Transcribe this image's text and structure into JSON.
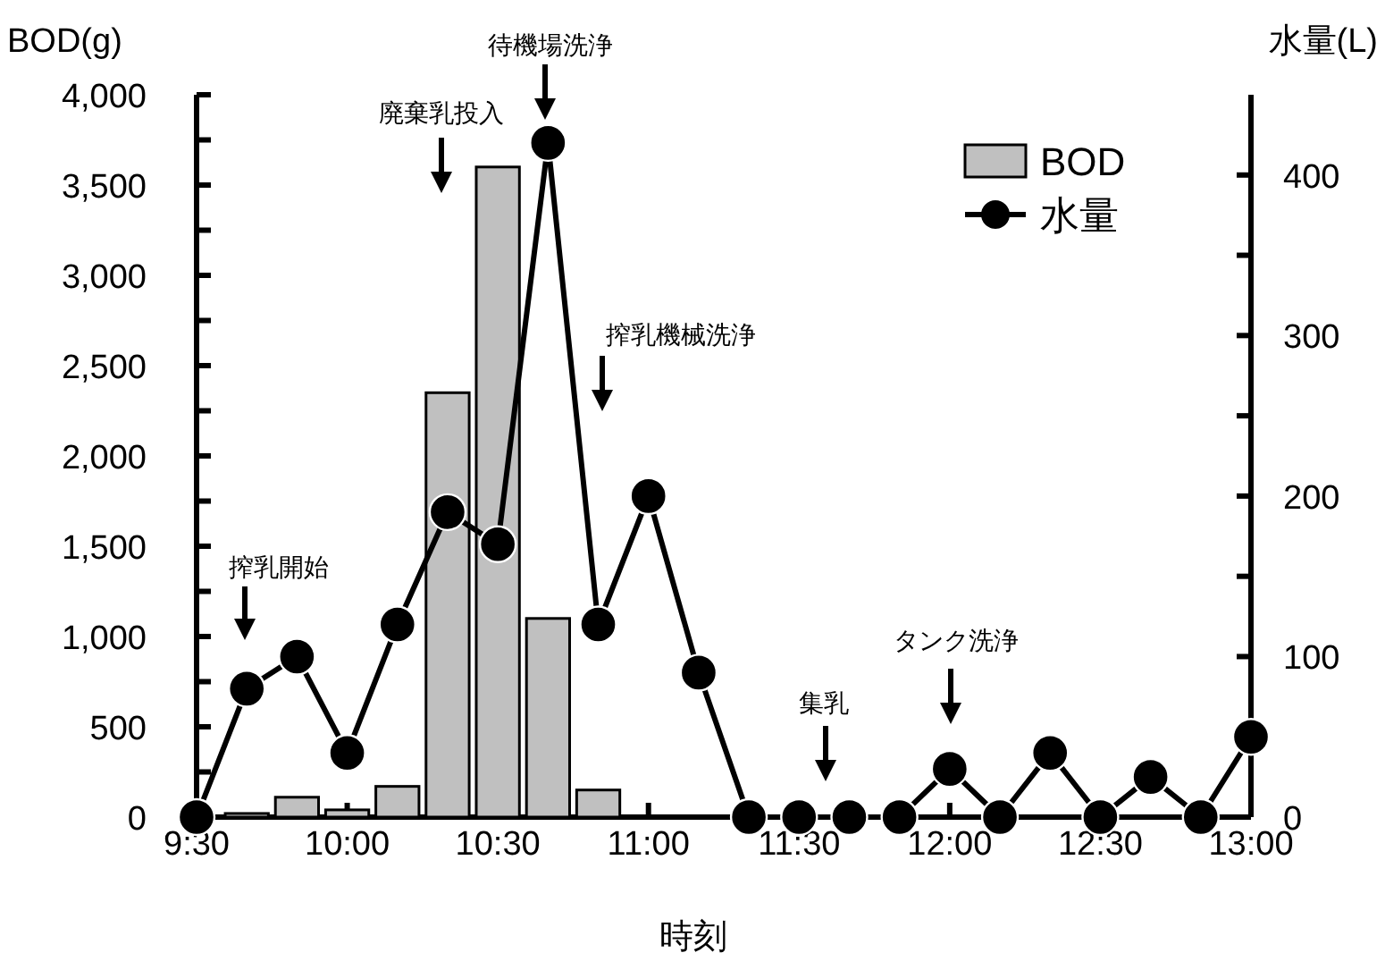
{
  "chart_data": {
    "type": "bar",
    "xlabel": "時刻",
    "ylabel": "BOD(g)",
    "y2label": "水量(L)",
    "x": [
      9.5,
      9.6667,
      9.8333,
      10.0,
      10.1667,
      10.3333,
      10.5,
      10.6667,
      10.8333,
      11.0,
      11.1667,
      11.3333,
      11.5,
      11.6667,
      11.8333,
      12.0,
      12.1667,
      12.3333,
      12.5,
      12.6667,
      12.8333,
      13.0
    ],
    "series": [
      {
        "name": "BOD",
        "color": "#c0c0c0",
        "x": [
          9.6667,
          9.8333,
          10.0,
          10.1667,
          10.3333,
          10.5,
          10.6667,
          10.8333
        ],
        "values": [
          20,
          110,
          40,
          170,
          2350,
          3600,
          1100,
          150
        ]
      },
      {
        "name": "水量",
        "type": "line",
        "axis": "y2",
        "color": "#000000",
        "marker": "circle",
        "values": [
          0,
          80,
          100,
          40,
          120,
          190,
          170,
          420,
          120,
          200,
          90,
          0,
          0,
          0,
          0,
          30,
          0,
          40,
          0,
          25,
          0,
          50
        ]
      }
    ],
    "xlim": [
      9.5,
      13.0
    ],
    "xticks": [
      {
        "value": 9.5,
        "label": "9:30"
      },
      {
        "value": 10.0,
        "label": "10:00"
      },
      {
        "value": 10.5,
        "label": "10:30"
      },
      {
        "value": 11.0,
        "label": "11:00"
      },
      {
        "value": 11.5,
        "label": "11:30"
      },
      {
        "value": 12.0,
        "label": "12:00"
      },
      {
        "value": 12.5,
        "label": "12:30"
      },
      {
        "value": 13.0,
        "label": "13:00"
      }
    ],
    "ylim": [
      0,
      4000
    ],
    "yticks": [
      {
        "value": 0,
        "label": "0"
      },
      {
        "value": 250,
        "label": null
      },
      {
        "value": 500,
        "label": "500"
      },
      {
        "value": 750,
        "label": null
      },
      {
        "value": 1000,
        "label": "1,000"
      },
      {
        "value": 1250,
        "label": null
      },
      {
        "value": 1500,
        "label": "1,500"
      },
      {
        "value": 1750,
        "label": null
      },
      {
        "value": 2000,
        "label": "2,000"
      },
      {
        "value": 2250,
        "label": null
      },
      {
        "value": 2500,
        "label": "2,500"
      },
      {
        "value": 2750,
        "label": null
      },
      {
        "value": 3000,
        "label": "3,000"
      },
      {
        "value": 3250,
        "label": null
      },
      {
        "value": 3500,
        "label": "3,500"
      },
      {
        "value": 3750,
        "label": null
      },
      {
        "value": 4000,
        "label": "4,000"
      }
    ],
    "y2lim": [
      0,
      450
    ],
    "y2ticks": [
      0,
      {
        "value": 50,
        "label": null
      },
      100,
      {
        "value": 150,
        "label": null
      },
      200,
      {
        "value": 250,
        "label": null
      },
      300,
      {
        "value": 350,
        "label": null
      },
      400
    ],
    "annotations": [
      "搾乳開始",
      "廃棄乳投入",
      "待機場洗浄",
      "搾乳機械洗浄",
      "集乳",
      "タンク洗浄"
    ],
    "legend": "top right",
    "grid": false,
    "line_style": "solid"
  }
}
